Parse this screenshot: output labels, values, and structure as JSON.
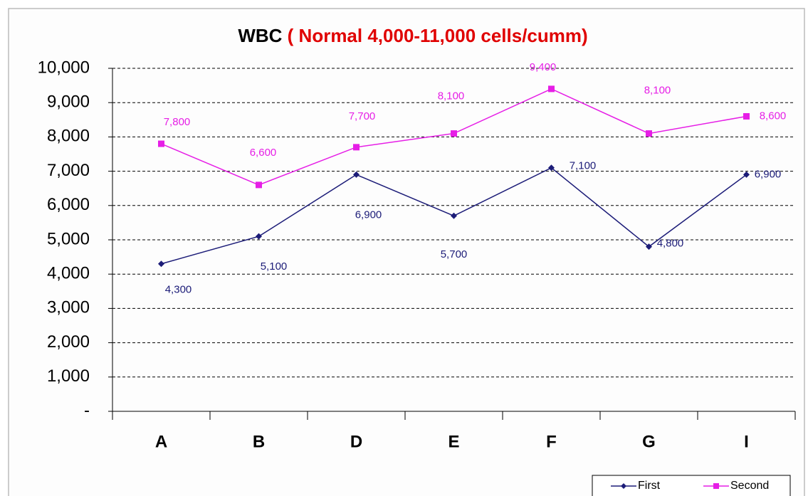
{
  "chart_data": {
    "type": "line",
    "title": "WBC",
    "subtitle": "( Normal 4,000-11,000 cells/cumm)",
    "categories": [
      "A",
      "B",
      "D",
      "E",
      "F",
      "G",
      "I"
    ],
    "series": [
      {
        "name": "First",
        "color": "#1c1c78",
        "values": [
          4300,
          5100,
          6900,
          5700,
          7100,
          4800,
          6900
        ],
        "value_labels": [
          "4,300",
          "5,100",
          "6,900",
          "5,700",
          "7,100",
          "4,800",
          "6,900"
        ]
      },
      {
        "name": "Second",
        "color": "#e61ee6",
        "values": [
          7800,
          6600,
          7700,
          8100,
          9400,
          8100,
          8600
        ],
        "value_labels": [
          "7,800",
          "6,600",
          "7,700",
          "8,100",
          "9,400",
          "8,100",
          "8,600"
        ]
      }
    ],
    "ylim": [
      0,
      10000
    ],
    "yticks": [
      {
        "value": 0,
        "label": "-"
      },
      {
        "value": 1000,
        "label": "1,000"
      },
      {
        "value": 2000,
        "label": "2,000"
      },
      {
        "value": 3000,
        "label": "3,000"
      },
      {
        "value": 4000,
        "label": "4,000"
      },
      {
        "value": 5000,
        "label": "5,000"
      },
      {
        "value": 6000,
        "label": "6,000"
      },
      {
        "value": 7000,
        "label": "7,000"
      },
      {
        "value": 8000,
        "label": "8,000"
      },
      {
        "value": 9000,
        "label": "9,000"
      },
      {
        "value": 10000,
        "label": "10,000"
      }
    ],
    "grid": true,
    "legend": "bottom-right"
  }
}
